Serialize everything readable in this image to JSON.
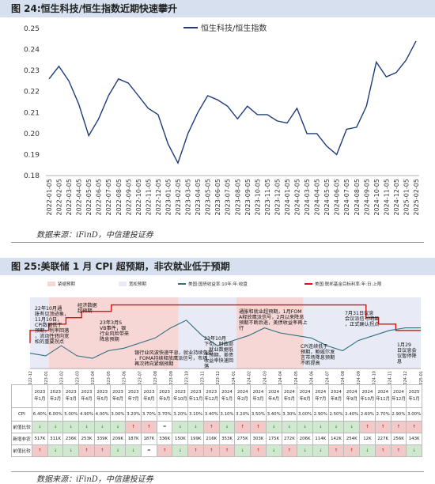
{
  "figure1": {
    "title": "图 24:恒生科技/恒生指数近期快速攀升",
    "source": "数据来源：iFinD，中信建投证券",
    "chart_data": {
      "type": "line",
      "series": [
        {
          "name": "恒生科技/恒生指数"
        }
      ],
      "ylim": [
        0.18,
        0.25
      ],
      "yticks": [
        "0.18",
        "0.19",
        "0.20",
        "0.21",
        "0.22",
        "0.23",
        "0.24",
        "0.25"
      ],
      "x_tick_labels": [
        "2022-01-05",
        "2022-02-05",
        "2022-03-05",
        "2022-04-05",
        "2022-05-05",
        "2022-06-05",
        "2022-07-05",
        "2022-08-05",
        "2022-09-05",
        "2022-10-05",
        "2022-11-05",
        "2022-12-05",
        "2023-01-05",
        "2023-02-05",
        "2023-03-05",
        "2023-04-05",
        "2023-05-05",
        "2023-06-05",
        "2023-07-05",
        "2023-08-05",
        "2023-09-05",
        "2023-10-05",
        "2023-11-05",
        "2023-12-05",
        "2024-01-05",
        "2024-02-05",
        "2024-03-05",
        "2024-04-05",
        "2024-05-05",
        "2024-06-05",
        "2024-07-05",
        "2024-08-05",
        "2024-09-05",
        "2024-10-05",
        "2024-11-05",
        "2024-12-05",
        "2025-01-05",
        "2025-02-05"
      ],
      "values": [
        0.226,
        0.232,
        0.225,
        0.214,
        0.199,
        0.207,
        0.218,
        0.226,
        0.224,
        0.218,
        0.212,
        0.209,
        0.195,
        0.186,
        0.2,
        0.21,
        0.218,
        0.216,
        0.213,
        0.207,
        0.213,
        0.209,
        0.209,
        0.206,
        0.205,
        0.212,
        0.2,
        0.2,
        0.194,
        0.19,
        0.202,
        0.203,
        0.213,
        0.234,
        0.227,
        0.229,
        0.235,
        0.244
      ]
    }
  },
  "figure2": {
    "title": "图 25:美联储 1 月 CPI 超预期，非农就业低于预期",
    "source": "数据来源：iFinD，中信建投证券",
    "legend": [
      "紧缩预期",
      "宽松预期",
      "美国:国债收益率:10年:年:收盘",
      "美国:联邦基金目标利率:年:日:上限"
    ],
    "x_tick_labels": [
      "2022-12",
      "2023-01",
      "2023-02",
      "2023-03",
      "2023-04",
      "2023-05",
      "2023-06",
      "2023-07",
      "2023-08",
      "2023-09",
      "2023-10",
      "2023-11",
      "2023-12",
      "2024-01",
      "2024-02",
      "2024-03",
      "2024-04",
      "2024-05",
      "2024-06",
      "2024-07",
      "2024-08",
      "2024-09",
      "2024-10",
      "2024-11",
      "2024-12",
      "2025-01"
    ],
    "annotations": [
      "22年10月通胀有见顶迹象，11月10日，CPI数据低于预期，利率回落，流动性转向宽松的重要拐点",
      "经济数据超预期",
      "23年3月SVB事件，银行业风险带来降息预期",
      "银行业风波快速平息，就业持续强劲，FOMA持续释放鹰派信号，市场再次转向紧缩预期",
      "23年10月下旬，财政部、就业数据低于预期，美债收益率快速回落",
      "通胀和就业超预期，1月FOMA释放鹰派信号，2月以来降息预期不断后退，美债收益率再上行",
      "CPI连续低于预期，鲍威尔发言市场降息预期不断提高",
      "7月31日议息会议派信号明显，正式确认拐点",
      "1月29日议息会议暂停降息"
    ],
    "table": {
      "row_labels": [
        "",
        "CPI",
        "前值比较",
        "新增非农",
        "前值比较"
      ],
      "months": [
        "2023年1月",
        "2023年2月",
        "2023年3月",
        "2023年4月",
        "2023年5月",
        "2023年6月",
        "2023年7月",
        "2023年8月",
        "2023年9月",
        "2023年10月",
        "2023年11月",
        "2023年12月",
        "2024年1月",
        "2024年2月",
        "2024年3月",
        "2024年4月",
        "2024年5月",
        "2024年6月",
        "2024年7月",
        "2024年8月",
        "2024年9月",
        "2024年10月",
        "2024年11月",
        "2024年12月",
        "2025年1月"
      ],
      "cpi": [
        "6.40%",
        "6.00%",
        "5.00%",
        "4.90%",
        "4.00%",
        "3.00%",
        "3.20%",
        "3.70%",
        "3.70%",
        "3.20%",
        "3.10%",
        "3.40%",
        "3.10%",
        "3.20%",
        "3.50%",
        "3.40%",
        "3.30%",
        "3.00%",
        "2.90%",
        "2.50%",
        "2.40%",
        "2.60%",
        "2.70%",
        "2.90%",
        "3.00%"
      ],
      "cpi_cmp": [
        "↓",
        "↓",
        "↓",
        "↓",
        "↓",
        "↓",
        "↑",
        "↑",
        "=",
        "↓",
        "↓",
        "↑",
        "↓",
        "↑",
        "↑",
        "↓",
        "↓",
        "↓",
        "↓",
        "↓",
        "↓",
        "↑",
        "↑",
        "↑",
        "↑"
      ],
      "nfp": [
        "517K",
        "311K",
        "236K",
        "253K",
        "339K",
        "209K",
        "187K",
        "187K",
        "336K",
        "150K",
        "199K",
        "216K",
        "353K",
        "275K",
        "303K",
        "175K",
        "272K",
        "206K",
        "114K",
        "142K",
        "254K",
        "12K",
        "227K",
        "256K",
        "143K"
      ],
      "nfp_cmp": [
        "↑",
        "↓",
        "↓",
        "↑",
        "↑",
        "↓",
        "↓",
        "=",
        "↑",
        "↓",
        "↑",
        "↑",
        "↑",
        "↓",
        "↑",
        "↓",
        "↑",
        "↓",
        "↓",
        "↑",
        "↑",
        "↓",
        "↑",
        "↑",
        "↓"
      ]
    }
  }
}
